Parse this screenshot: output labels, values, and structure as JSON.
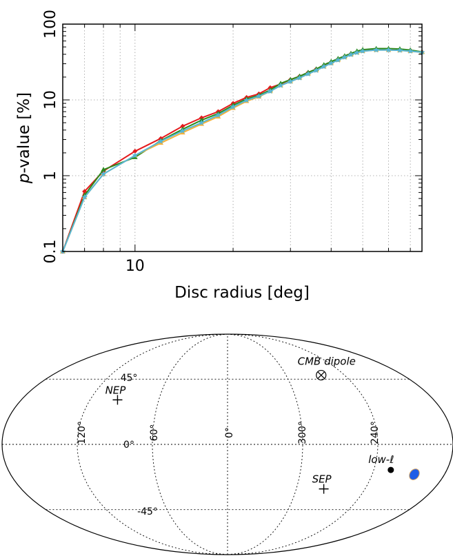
{
  "chart_data": [
    {
      "type": "line",
      "xlabel": "Disc radius [deg]",
      "ylabel_italic": "p",
      "ylabel_rest": "-value [%]",
      "x_scale": "log",
      "y_scale": "log",
      "xlim": [
        6,
        76
      ],
      "ylim": [
        0.1,
        100
      ],
      "x_ticks": [
        {
          "value": 10,
          "label": "10"
        }
      ],
      "y_ticks": [
        {
          "value": 0.1,
          "label": "0.1"
        },
        {
          "value": 1,
          "label": "1"
        },
        {
          "value": 10,
          "label": "10"
        },
        {
          "value": 100,
          "label": "100"
        }
      ],
      "grid": true,
      "series": [
        {
          "color": "#e41a1c",
          "marker": "diamond",
          "x": [
            6,
            7,
            8,
            10,
            12,
            14,
            16,
            18,
            20,
            22,
            24,
            26,
            28,
            30,
            32,
            34,
            36,
            38,
            40,
            42,
            44,
            46,
            48,
            50,
            55,
            60,
            65,
            70,
            76
          ],
          "y": [
            0.1,
            0.62,
            1.15,
            2.1,
            3.1,
            4.5,
            5.8,
            7.0,
            9.0,
            10.8,
            12.0,
            14.5,
            16.2,
            18.5,
            20.5,
            23.0,
            25.5,
            28.5,
            31.5,
            34.5,
            37.5,
            40.5,
            43.0,
            45.0,
            46.5,
            46.5,
            46.0,
            45.0,
            43.0
          ]
        },
        {
          "color": "#2a8a1c",
          "marker": "triangle",
          "x": [
            6,
            7,
            8,
            10,
            12,
            14,
            16,
            18,
            20,
            22,
            24,
            26,
            28,
            30,
            32,
            34,
            36,
            38,
            40,
            42,
            44,
            46,
            48,
            50,
            55,
            60,
            65,
            70,
            76
          ],
          "y": [
            0.1,
            0.55,
            1.2,
            1.75,
            2.9,
            4.1,
            5.4,
            6.6,
            8.5,
            10.3,
            11.5,
            13.5,
            16.5,
            18.5,
            20.5,
            23.0,
            25.5,
            29.0,
            32.0,
            35.0,
            38.0,
            41.0,
            44.0,
            46.0,
            47.5,
            47.5,
            47.0,
            45.5,
            43.0
          ]
        },
        {
          "color": "#f4b13a",
          "marker": "triangle",
          "x": [
            6,
            7,
            8,
            10,
            12,
            14,
            16,
            18,
            20,
            22,
            24,
            26,
            28,
            30,
            32,
            34,
            36,
            38,
            40,
            42,
            44,
            46,
            48,
            50,
            55,
            60,
            65,
            70,
            76
          ],
          "y": [
            0.1,
            0.52,
            1.05,
            1.85,
            2.7,
            3.7,
            4.8,
            6.0,
            7.8,
            9.6,
            11.0,
            13.0,
            15.5,
            17.5,
            19.5,
            22.0,
            24.5,
            27.5,
            30.5,
            33.5,
            36.5,
            39.5,
            42.0,
            44.0,
            45.5,
            45.5,
            45.0,
            44.0,
            42.5
          ]
        },
        {
          "color": "#56b6d6",
          "marker": "star",
          "x": [
            6,
            7,
            8,
            10,
            12,
            14,
            16,
            18,
            20,
            22,
            24,
            26,
            28,
            30,
            32,
            34,
            36,
            38,
            40,
            42,
            44,
            46,
            48,
            50,
            55,
            60,
            65,
            70,
            76
          ],
          "y": [
            0.1,
            0.52,
            1.05,
            1.85,
            2.85,
            3.9,
            5.0,
            6.3,
            8.1,
            9.9,
            11.2,
            13.0,
            15.5,
            17.5,
            19.5,
            22.0,
            24.5,
            27.5,
            30.5,
            33.5,
            36.5,
            39.5,
            42.0,
            44.0,
            45.5,
            45.5,
            45.0,
            44.0,
            42.5
          ]
        }
      ]
    },
    {
      "type": "scatter",
      "projection": "mollweide",
      "meridian_labels": [
        "120°",
        "60°",
        "0°",
        "300°",
        "240°"
      ],
      "parallel_labels": [
        "45°",
        "0°",
        "-45°"
      ],
      "points": [
        {
          "label": "CMB dipole",
          "lon": 264,
          "lat": 48,
          "marker": "circle-cross"
        },
        {
          "label": "NEP",
          "lon": 96,
          "lat": 30,
          "marker": "plus"
        },
        {
          "label": "SEP",
          "lon": 276,
          "lat": -30,
          "marker": "plus"
        },
        {
          "label": "low-ℓ",
          "lon": 226,
          "lat": -17,
          "marker": "dot"
        },
        {
          "label": "",
          "lon": 205,
          "lat": -20,
          "marker": "blue-disc"
        }
      ],
      "colors": {
        "blue_disc": "#1f5de6",
        "blue_disc_edge": "#d0a060"
      }
    }
  ]
}
